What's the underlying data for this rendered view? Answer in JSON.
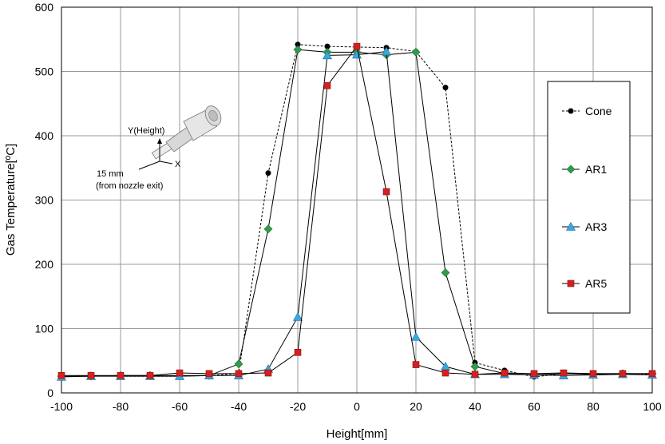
{
  "chart_data": {
    "type": "line",
    "xlabel": "Height[mm]",
    "ylabel": "Gas Temperature[ºC]",
    "xlim": [
      -100,
      100
    ],
    "ylim": [
      0,
      600
    ],
    "xticks": [
      -100,
      -80,
      -60,
      -40,
      -20,
      0,
      20,
      40,
      60,
      80,
      100
    ],
    "yticks": [
      0,
      100,
      200,
      300,
      400,
      500,
      600
    ],
    "grid": true,
    "legend_position": "right",
    "x": [
      -100,
      -90,
      -80,
      -70,
      -60,
      -50,
      -40,
      -30,
      -20,
      -10,
      0,
      10,
      20,
      30,
      40,
      50,
      60,
      70,
      80,
      90,
      100
    ],
    "series": [
      {
        "name": "Cone",
        "marker": "circle",
        "line_style": "dashed",
        "color": "#000000",
        "values": [
          25,
          27,
          26,
          26,
          26,
          27,
          30,
          342,
          542,
          539,
          538,
          537,
          531,
          475,
          47,
          35,
          25,
          30,
          30,
          30,
          29
        ]
      },
      {
        "name": "AR1",
        "marker": "diamond",
        "line_style": "solid",
        "color": "#2e9e4a",
        "values": [
          26,
          26,
          27,
          27,
          27,
          27,
          45,
          255,
          534,
          530,
          530,
          526,
          530,
          187,
          41,
          30,
          28,
          30,
          29,
          30,
          30
        ]
      },
      {
        "name": "AR3",
        "marker": "triangle",
        "line_style": "solid",
        "color": "#3aa7e0",
        "values": [
          25,
          26,
          26,
          26,
          26,
          27,
          27,
          37,
          118,
          525,
          526,
          531,
          87,
          41,
          29,
          29,
          28,
          27,
          28,
          29,
          28
        ]
      },
      {
        "name": "AR5",
        "marker": "square",
        "line_style": "solid",
        "color": "#d62020",
        "values": [
          27,
          27,
          27,
          27,
          31,
          30,
          30,
          31,
          63,
          478,
          539,
          313,
          44,
          31,
          29,
          31,
          30,
          31,
          30,
          30,
          30
        ]
      }
    ],
    "annotations": {
      "axis_y": "Y(Height)",
      "axis_x": "X",
      "distance": "15 mm",
      "distance_note": "(from nozzle exit)"
    }
  }
}
